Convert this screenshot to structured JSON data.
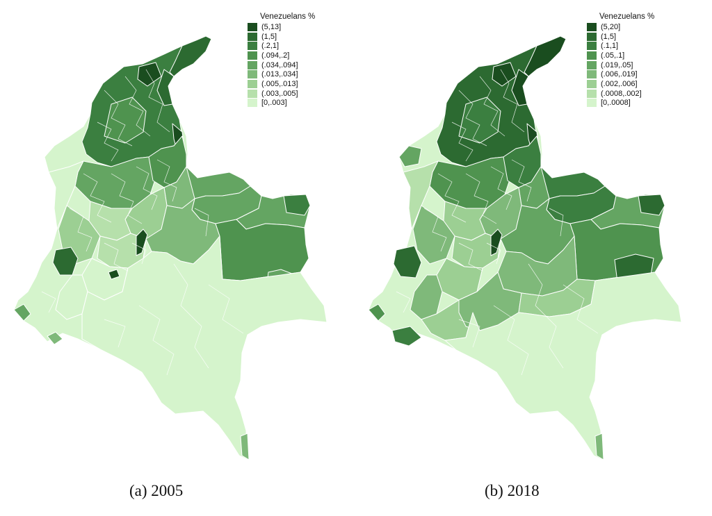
{
  "maps": [
    {
      "caption": "(a) 2005",
      "legend": {
        "title": "Venezuelans %",
        "classes": [
          {
            "label": "(5,13]",
            "color": "#1a4d1f"
          },
          {
            "label": "(1,5]",
            "color": "#2c6a31"
          },
          {
            "label": "(.2,1]",
            "color": "#3b7f40"
          },
          {
            "label": "(.094,.2]",
            "color": "#4f934f"
          },
          {
            "label": "(.034,.094]",
            "color": "#64a562"
          },
          {
            "label": "(.013,.034]",
            "color": "#7fb97a"
          },
          {
            "label": "(.005,.013]",
            "color": "#9ccf93"
          },
          {
            "label": "(.003,.005]",
            "color": "#b6e0ab"
          },
          {
            "label": "[0,.003]",
            "color": "#d5f4cc"
          }
        ]
      }
    },
    {
      "caption": "(b) 2018",
      "legend": {
        "title": "Venezuelans %",
        "classes": [
          {
            "label": "(5,20]",
            "color": "#1a4d1f"
          },
          {
            "label": "(1,5]",
            "color": "#2c6a31"
          },
          {
            "label": "(.1,1]",
            "color": "#3b7f40"
          },
          {
            "label": "(.05,.1]",
            "color": "#4f934f"
          },
          {
            "label": "(.019,.05]",
            "color": "#64a562"
          },
          {
            "label": "(.006,.019]",
            "color": "#7fb97a"
          },
          {
            "label": "(.002,.006]",
            "color": "#9ccf93"
          },
          {
            "label": "(.0008,.002]",
            "color": "#b6e0ab"
          },
          {
            "label": "[0,.0008]",
            "color": "#d5f4cc"
          }
        ]
      }
    }
  ]
}
